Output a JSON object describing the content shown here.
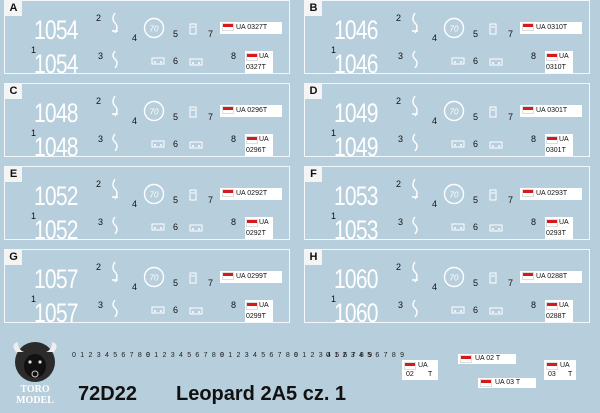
{
  "panels": [
    {
      "letter": "A",
      "num": "1054",
      "plate_long": "UA 0327T",
      "plate_a": "UA",
      "plate_b": "0327T"
    },
    {
      "letter": "B",
      "num": "1046",
      "plate_long": "UA 0310T",
      "plate_a": "UA",
      "plate_b": "0310T"
    },
    {
      "letter": "C",
      "num": "1048",
      "plate_long": "UA 0296T",
      "plate_a": "UA",
      "plate_b": "0296T"
    },
    {
      "letter": "D",
      "num": "1049",
      "plate_long": "UA 0301T",
      "plate_a": "UA",
      "plate_b": "0301T"
    },
    {
      "letter": "E",
      "num": "1052",
      "plate_long": "UA 0292T",
      "plate_a": "UA",
      "plate_b": "0292T"
    },
    {
      "letter": "F",
      "num": "1053",
      "plate_long": "UA 0293T",
      "plate_a": "UA",
      "plate_b": "0293T"
    },
    {
      "letter": "G",
      "num": "1057",
      "plate_long": "UA 0299T",
      "plate_a": "UA",
      "plate_b": "0299T"
    },
    {
      "letter": "H",
      "num": "1060",
      "plate_long": "UA 0288T",
      "plate_a": "UA",
      "plate_b": "0288T"
    }
  ],
  "indices": [
    "1",
    "2",
    "3",
    "4",
    "5",
    "6",
    "7",
    "8"
  ],
  "speed_sign": "70",
  "digit_strip": "0 1 2 3 4 5 6 7 8 9",
  "footer_plates": [
    {
      "a": "UA",
      "b": "02",
      "c": "T"
    },
    {
      "text": "UA 02    T"
    },
    {
      "text": "UA 03    T"
    },
    {
      "a": "UA",
      "b": "03",
      "c": "T"
    }
  ],
  "logo": {
    "line1": "TORO",
    "line2": "MODEL"
  },
  "product_code": "72D22",
  "product_name": "Leopard 2A5   cz. 1",
  "colors": {
    "background": "#b7cedc",
    "flag_red": "#d41a1a",
    "decal_white": "#ffffff"
  }
}
